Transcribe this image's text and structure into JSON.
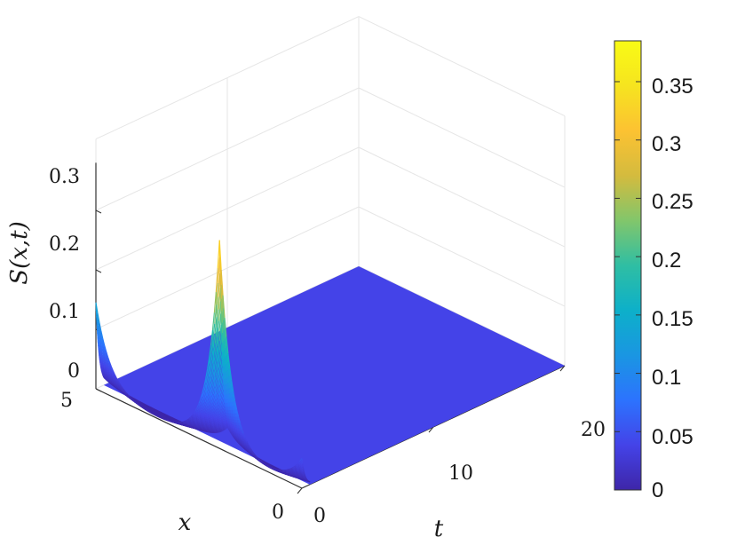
{
  "chart_data": {
    "type": "surface3d",
    "zlabel": "S(x,t)",
    "xlabel": "x",
    "ylabel": "t",
    "z_ticks": [
      "0",
      "0.1",
      "0.2",
      "0.3"
    ],
    "x_ticks": [
      "0",
      "5"
    ],
    "t_ticks": [
      "0",
      "10",
      "20"
    ],
    "xlim": [
      0,
      5
    ],
    "tlim": [
      0,
      20
    ],
    "zlim": [
      0,
      0.38
    ],
    "grid": true,
    "colormap": "parula",
    "colorbar": {
      "ticks": [
        "0",
        "0.05",
        "0.1",
        "0.15",
        "0.2",
        "0.25",
        "0.3",
        "0.35"
      ],
      "range": [
        0,
        0.385
      ],
      "colors": [
        "#3e26a8",
        "#4443e8",
        "#2c73fe",
        "#1a96e2",
        "#0db0c9",
        "#2fbea3",
        "#82c66b",
        "#d4bb3e",
        "#fcc232",
        "#f6e41f",
        "#f9fb15"
      ]
    },
    "peaks": [
      {
        "x": 5.0,
        "t": 0,
        "max_value": 0.145
      },
      {
        "x": 2.0,
        "t": 0,
        "max_value": 0.35
      },
      {
        "x": 0.0,
        "t": 0,
        "max_value": 0.05
      }
    ],
    "baseline_value": 0.0
  }
}
